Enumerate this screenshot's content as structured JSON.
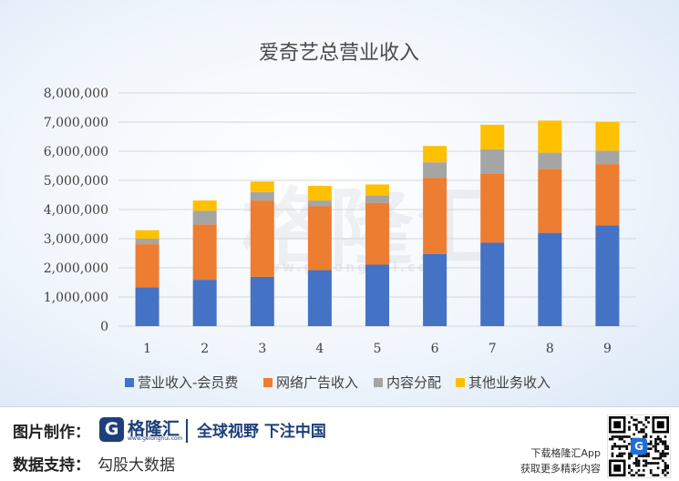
{
  "chart_data": {
    "type": "bar",
    "stacked": true,
    "title": "爱奇艺总营业收入",
    "categories": [
      "1",
      "2",
      "3",
      "4",
      "5",
      "6",
      "7",
      "8",
      "9"
    ],
    "y_ticks": [
      "0",
      "1,000,000",
      "2,000,000",
      "3,000,000",
      "4,000,000",
      "5,000,000",
      "6,000,000",
      "7,000,000",
      "8,000,000"
    ],
    "ylim": [
      0,
      8000000
    ],
    "grid": true,
    "legend_position": "bottom",
    "series": [
      {
        "name": "营业收入-会员费",
        "color": "#4472C4",
        "values": [
          1330000,
          1590000,
          1690000,
          1920000,
          2110000,
          2470000,
          2860000,
          3200000,
          3460000
        ]
      },
      {
        "name": "网络广告收入",
        "color": "#ED7D31",
        "values": [
          1480000,
          1900000,
          2620000,
          2190000,
          2120000,
          2620000,
          2360000,
          2200000,
          2100000
        ]
      },
      {
        "name": "内容分配",
        "color": "#A5A5A5",
        "values": [
          190000,
          470000,
          290000,
          200000,
          250000,
          530000,
          850000,
          550000,
          460000
        ]
      },
      {
        "name": "其他业务收入",
        "color": "#FFC000",
        "values": [
          290000,
          350000,
          360000,
          500000,
          380000,
          560000,
          840000,
          1100000,
          990000
        ]
      }
    ]
  },
  "watermark": {
    "text": "格隆汇",
    "url": "www.gelonghui.com"
  },
  "footer": {
    "made_by_label": "图片制作：",
    "logo_badge": "G",
    "logo_name": "格隆汇",
    "logo_url": "www.gelonghui.com",
    "slogan": "全球视野 下注中国",
    "data_label": "数据支持：",
    "data_source": "勾股大数据",
    "download_line1": "下载格隆汇App",
    "download_line2": "获取更多精彩内容",
    "qr_badge": "G"
  }
}
